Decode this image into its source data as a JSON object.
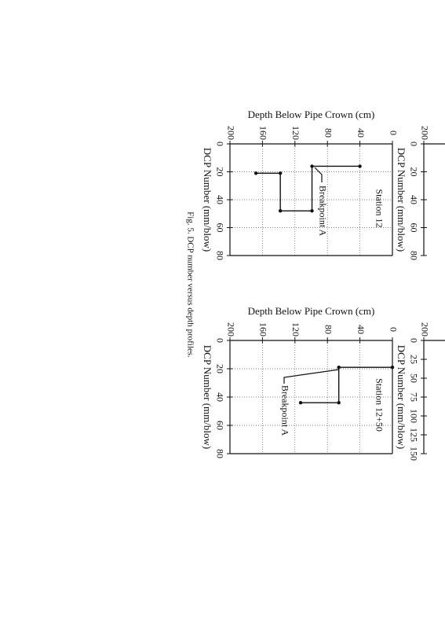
{
  "caption": "Fig. 5. DCP number versus depth profiles.",
  "chart_data": [
    {
      "type": "line",
      "title": "Station 12",
      "xlabel": "DCP Number (mm/blow)",
      "ylabel": "Depth Below Pipe Crown (cm)",
      "annotation": "Breakpoint A",
      "x": [
        16,
        16,
        48,
        48,
        21,
        21
      ],
      "y": [
        40,
        99,
        99,
        138,
        138,
        168
      ],
      "color": "#111111",
      "xlim": [
        0,
        80
      ],
      "xticks": [
        0,
        20,
        40,
        60,
        80
      ],
      "ylim": [
        0,
        200
      ],
      "yticks": [
        0,
        40,
        80,
        120,
        160,
        200
      ],
      "grid": true
    },
    {
      "type": "line",
      "title": "Station 12+50",
      "xlabel": "DCP Number (mm/blow)",
      "ylabel": "Depth Below Pipe Crown (cm)",
      "annotation": "Breakpoint A",
      "x": [
        19,
        19,
        44,
        44
      ],
      "y": [
        0,
        66,
        66,
        113
      ],
      "color": "#111111",
      "xlim": [
        0,
        80
      ],
      "xticks": [
        0,
        20,
        40,
        60,
        80
      ],
      "ylim": [
        0,
        200
      ],
      "yticks": [
        0,
        40,
        80,
        120,
        160,
        200
      ],
      "grid": true
    },
    {
      "type": "line",
      "xlabel": "DCP Number (mm/blow)",
      "xlim": [
        0,
        80
      ],
      "xticks": [
        0,
        20,
        40,
        60,
        80
      ],
      "ylim": [
        0,
        200
      ],
      "yticks": [
        200
      ]
    },
    {
      "type": "line",
      "xlabel": "DCP Number (mm/blow)",
      "xlim": [
        0,
        150
      ],
      "xticks": [
        0,
        25,
        50,
        75,
        100,
        125,
        150
      ],
      "ylim": [
        0,
        200
      ],
      "yticks": [
        200
      ]
    }
  ]
}
